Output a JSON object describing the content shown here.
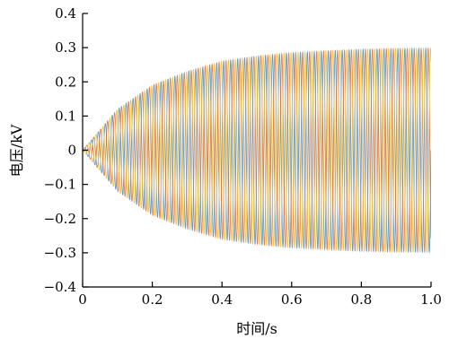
{
  "chart_data": {
    "type": "line",
    "title": "",
    "xlabel": "时间/s",
    "ylabel": "电压/kV",
    "xlim": [
      0,
      1.0
    ],
    "ylim": [
      -0.4,
      0.4
    ],
    "xticks": [
      0,
      0.2,
      0.4,
      0.6,
      0.8,
      1.0
    ],
    "xtick_labels": [
      "0",
      "0.2",
      "0.4",
      "0.6",
      "0.8",
      "1.0"
    ],
    "yticks": [
      -0.4,
      -0.3,
      -0.2,
      -0.1,
      0,
      0.1,
      0.2,
      0.3,
      0.4
    ],
    "ytick_labels": [
      "−0.4",
      "−0.3",
      "−0.2",
      "−0.1",
      "0",
      "0.1",
      "0.2",
      "0.3",
      "0.4"
    ],
    "grid": false,
    "legend": "none",
    "frequency_hz": 50,
    "series": [
      {
        "color": "#4a90c8",
        "phase_deg": 0
      },
      {
        "color": "#e2742f",
        "phase_deg": -120
      },
      {
        "color": "#e8c13a",
        "phase_deg": 120
      }
    ],
    "envelope": {
      "x": [
        0,
        0.1,
        0.2,
        0.3,
        0.4,
        0.5,
        0.6,
        0.7,
        0.8,
        0.9,
        1.0
      ],
      "amplitude": [
        0,
        0.12,
        0.19,
        0.23,
        0.26,
        0.275,
        0.285,
        0.29,
        0.295,
        0.297,
        0.298
      ]
    }
  }
}
